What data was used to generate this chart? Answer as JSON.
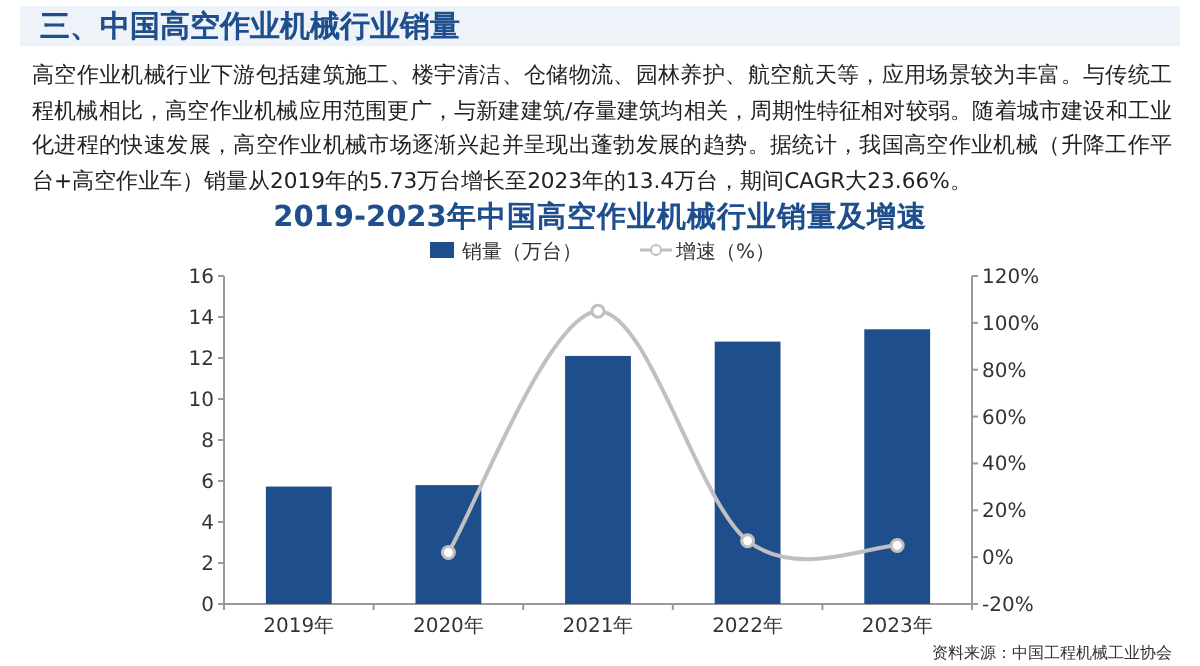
{
  "chart_data": {
    "type": "bar",
    "title": "2019-2023年中国高空作业机械行业销量及增速",
    "categories": [
      "2019年",
      "2020年",
      "2021年",
      "2022年",
      "2023年"
    ],
    "series": [
      {
        "name": "销量（万台）",
        "color": "#1f4e8c",
        "values": [
          5.73,
          5.8,
          12.1,
          12.8,
          13.4
        ]
      },
      {
        "name": "增速（%）",
        "type": "line",
        "axis": "y2",
        "color": "#c0c0c0",
        "marker": "circle",
        "values": [
          null,
          2,
          105,
          7,
          5
        ]
      }
    ],
    "ylim": [
      0,
      16
    ],
    "yticks": [
      0,
      2,
      4,
      6,
      8,
      10,
      12,
      14,
      16
    ],
    "y2lim": [
      -20,
      120
    ],
    "y2ticks": [
      {
        "value": -20,
        "label": "-20%"
      },
      {
        "value": 0,
        "label": "0%"
      },
      {
        "value": 20,
        "label": "20%"
      },
      {
        "value": 40,
        "label": "40%"
      },
      {
        "value": 60,
        "label": "60%"
      },
      {
        "value": 80,
        "label": "80%"
      },
      {
        "value": 100,
        "label": "100%"
      },
      {
        "value": 120,
        "label": "120%"
      }
    ],
    "legend": "top",
    "annotations": [
      "三、中国高空作业机械行业销量",
      "高空作业机械行业下游包括建筑施工、楼宇清洁、仓储物流、园林养护、航空航天等，应用场景较为丰富。与传统工程机械相比，高空作业机械应用范围更广，与新建建筑/存量建筑均相关，周期性特征相对较弱。随着城市建设和工业化进程的快速发展，高空作业机械市场逐渐兴起并呈现出蓬勃发展的趋势。据统计，我国高空作业机械（升降工作平台+高空作业车）销量从2019年的5.73万台增长至2023年的13.4万台，期间CAGR大23.66%。",
      "资料来源：中国工程机械工业协会"
    ]
  }
}
